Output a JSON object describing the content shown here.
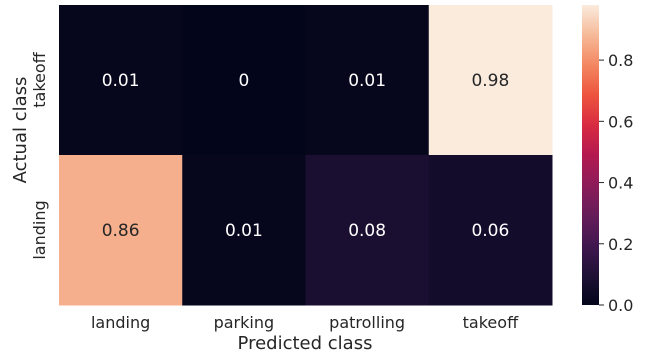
{
  "chart_data": {
    "type": "heatmap",
    "title": "",
    "xlabel": "Predicted class",
    "ylabel": "Actual class",
    "x_categories": [
      "landing",
      "parking",
      "patrolling",
      "takeoff"
    ],
    "y_categories": [
      "takeoff",
      "landing"
    ],
    "values": [
      [
        0.01,
        0,
        0.01,
        0.98
      ],
      [
        0.86,
        0.01,
        0.08,
        0.06
      ]
    ],
    "value_labels": [
      [
        "0.01",
        "0",
        "0.01",
        "0.98"
      ],
      [
        "0.86",
        "0.01",
        "0.08",
        "0.06"
      ]
    ],
    "colorbar": {
      "vmin": 0.0,
      "vmax": 0.98,
      "ticks": [
        0.0,
        0.2,
        0.4,
        0.6,
        0.8
      ],
      "tick_labels": [
        "0.0",
        "0.2",
        "0.4",
        "0.6",
        "0.8"
      ]
    },
    "colormap": "rocket",
    "grid": false
  }
}
